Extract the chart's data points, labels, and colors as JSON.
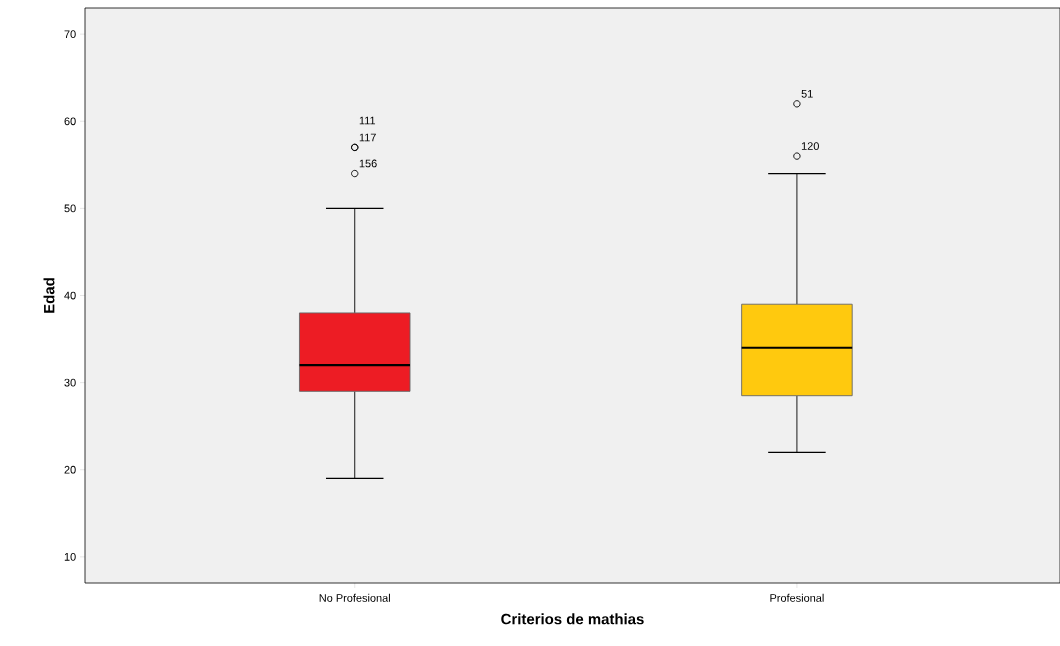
{
  "chart_data": {
    "type": "box",
    "xlabel": "Criterios de mathias",
    "ylabel": "Edad",
    "categories": [
      "No Profesional",
      "Profesional"
    ],
    "colors": [
      "#ed1c24",
      "#ffc90e"
    ],
    "boxes": [
      {
        "low": 19,
        "q1": 29,
        "median": 32,
        "q3": 38,
        "high": 50,
        "outliers": [
          57,
          57,
          54
        ]
      },
      {
        "low": 22,
        "q1": 28.5,
        "median": 34,
        "q3": 39,
        "high": 54,
        "outliers": [
          62,
          56
        ]
      }
    ],
    "ylim": [
      7,
      73
    ],
    "yticks": [
      10,
      20,
      30,
      40,
      50,
      60,
      70
    ],
    "annotations": [
      "111",
      "117",
      "156",
      "51",
      "120"
    ]
  }
}
